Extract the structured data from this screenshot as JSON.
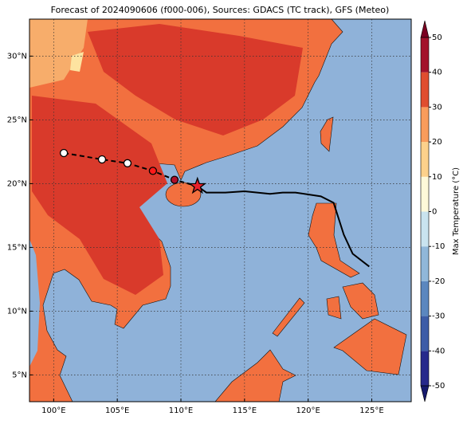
{
  "chart_data": {
    "type": "map",
    "title": "Forecast of 2024090606 (f000-006), Sources: GDACS (TC track), GFS (Meteo)",
    "xlim": [
      98.1,
      128.1
    ],
    "ylim": [
      2.9,
      32.9
    ],
    "xticks": [
      {
        "value": 100,
        "label": "100°E"
      },
      {
        "value": 105,
        "label": "105°E"
      },
      {
        "value": 110,
        "label": "110°E"
      },
      {
        "value": 115,
        "label": "115°E"
      },
      {
        "value": 120,
        "label": "120°E"
      },
      {
        "value": 125,
        "label": "125°E"
      }
    ],
    "yticks": [
      {
        "value": 5,
        "label": "5°N"
      },
      {
        "value": 10,
        "label": "10°N"
      },
      {
        "value": 15,
        "label": "15°N"
      },
      {
        "value": 20,
        "label": "20°N"
      },
      {
        "value": 25,
        "label": "25°N"
      },
      {
        "value": 30,
        "label": "30°N"
      }
    ],
    "grid": true,
    "colorbar": {
      "label": "Max Temperature (°C)",
      "lim": [
        -50,
        50
      ],
      "ticks": [
        -50,
        -40,
        -30,
        -20,
        -10,
        0,
        10,
        20,
        30,
        40,
        50
      ],
      "colors": [
        "#27298c",
        "#3d5ca7",
        "#5b87bf",
        "#90b7d9",
        "#c9e3ef",
        "#fef9d9",
        "#fdd18b",
        "#f99c5b",
        "#e04e2f",
        "#a3122b"
      ],
      "under_color": "#161a6e",
      "over_color": "#7a0021"
    },
    "forecast_track": {
      "lon": [
        100.8,
        103.8,
        105.8,
        107.8,
        109.5,
        111.3
      ],
      "lat": [
        22.4,
        21.9,
        21.6,
        21.0,
        20.3,
        19.8
      ],
      "point_colors": [
        "#ffffff",
        "#ffffff",
        "#ffffff",
        "#ff1a1a",
        "#b0102a",
        "#e8202a"
      ]
    },
    "history_track": {
      "lon": [
        111.3,
        112.0,
        113.5,
        115.0,
        117.0,
        118.0,
        119.0,
        121.0,
        122.0,
        122.8,
        123.5,
        124.8
      ],
      "lat": [
        19.8,
        19.3,
        19.3,
        19.4,
        19.2,
        19.3,
        19.3,
        19.0,
        18.5,
        16.0,
        14.5,
        13.5
      ]
    }
  }
}
